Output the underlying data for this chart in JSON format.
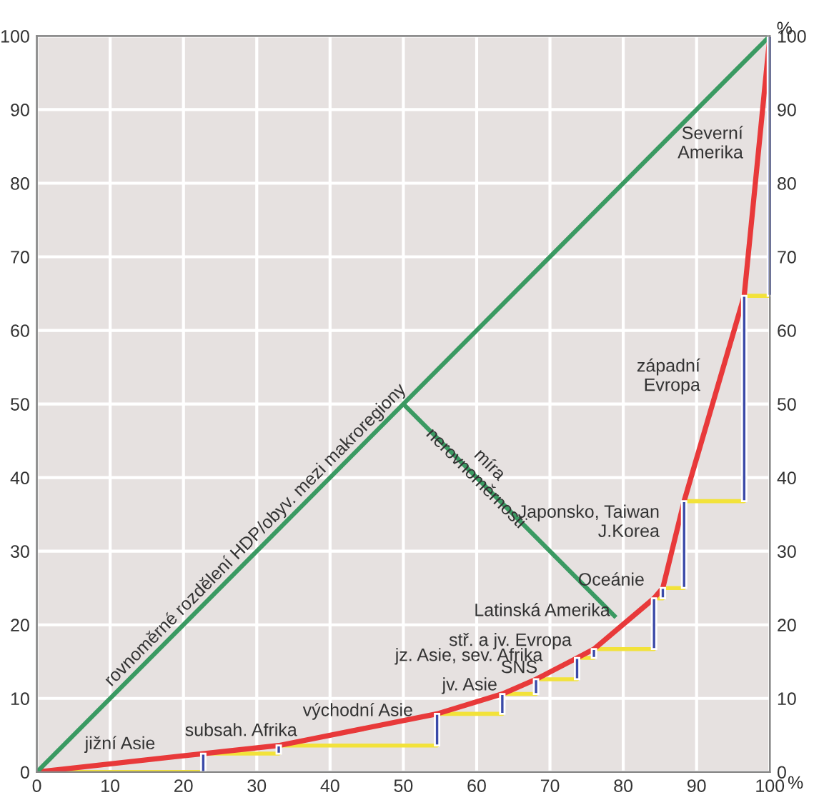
{
  "chart_data": {
    "type": "line",
    "x": [
      0,
      22.7,
      33,
      54.6,
      63.5,
      68.1,
      73.7,
      76,
      84.2,
      85.4,
      88.3,
      96.5,
      100
    ],
    "series": [
      {
        "color": "#e8393a",
        "values": [
          0,
          2.5,
          3.6,
          7.9,
          10.6,
          12.6,
          15.5,
          16.7,
          23.6,
          25,
          36.8,
          64.7,
          100
        ]
      },
      {
        "type": "step",
        "color": "#f2e23a",
        "values": [
          0,
          2.5,
          3.6,
          7.9,
          10.6,
          12.6,
          15.5,
          16.7,
          23.6,
          25,
          36.8,
          64.7,
          100
        ]
      },
      {
        "type": "bar",
        "color": "#3b4aa8",
        "x": [
          22.7,
          33,
          54.6,
          63.5,
          68.1,
          73.7,
          76,
          84.2,
          85.4,
          88.3,
          96.5,
          100
        ],
        "base": [
          0,
          2.5,
          3.6,
          7.9,
          10.6,
          12.6,
          15.5,
          16.7,
          23.6,
          25,
          36.8,
          64.7
        ],
        "values": [
          2.5,
          1.1,
          4.3,
          2.7,
          2.0,
          2.9,
          1.2,
          6.9,
          1.4,
          11.8,
          27.9,
          35.3
        ]
      },
      {
        "type": "line",
        "color": "#3a9a62",
        "x": [
          0,
          100
        ],
        "values": [
          0,
          100
        ]
      },
      {
        "type": "line",
        "color": "#3a9a62",
        "x": [
          50,
          79
        ],
        "values": [
          50,
          21
        ]
      }
    ],
    "annotations": [
      {
        "text": "rovnoměrné rozdělení HDP/obyv. mezi makroregiony",
        "x": 31,
        "y": 31
      },
      {
        "text": "míra\nnerovnoměrnosti",
        "x": 60,
        "y": 40
      },
      {
        "text": "jižní Asie",
        "x": 11.35,
        "y": 1.25
      },
      {
        "text": "subsah. Afrika",
        "x": 27.85,
        "y": 3.05
      },
      {
        "text": "východní Asie",
        "x": 43.8,
        "y": 5.75
      },
      {
        "text": "jv. Asie",
        "x": 59.05,
        "y": 9.25
      },
      {
        "text": "SNS",
        "x": 65.8,
        "y": 11.6
      },
      {
        "text": "jz. Asie, sev. Afrika",
        "x": 70.9,
        "y": 14.05
      },
      {
        "text": "stř. a jv. Evropa",
        "x": 74.85,
        "y": 16.1
      },
      {
        "text": "Latinská Amerika",
        "x": 80.1,
        "y": 20.15
      },
      {
        "text": "Oceánie",
        "x": 84.8,
        "y": 24.3
      },
      {
        "text": "Japonsko, Taiwan\nJ.Korea",
        "x": 86.85,
        "y": 30.9
      },
      {
        "text": "západní\nEvropa",
        "x": 92.4,
        "y": 50.75
      },
      {
        "text": "Severní\nAmerika",
        "x": 98.25,
        "y": 82.35
      }
    ],
    "xlabel": "%",
    "y2label": "%",
    "xlim": [
      0,
      100
    ],
    "xticks": [
      0,
      10,
      20,
      30,
      40,
      50,
      60,
      70,
      80,
      90,
      100
    ],
    "ylim": [
      0,
      100
    ],
    "yticks": [
      0,
      10,
      20,
      30,
      40,
      50,
      60,
      70,
      80,
      90,
      100
    ],
    "y2lim": [
      0,
      100
    ],
    "y2ticks": [
      0,
      10,
      20,
      30,
      40,
      50,
      60,
      70,
      80,
      90,
      100
    ],
    "grid": true,
    "legend": false
  }
}
